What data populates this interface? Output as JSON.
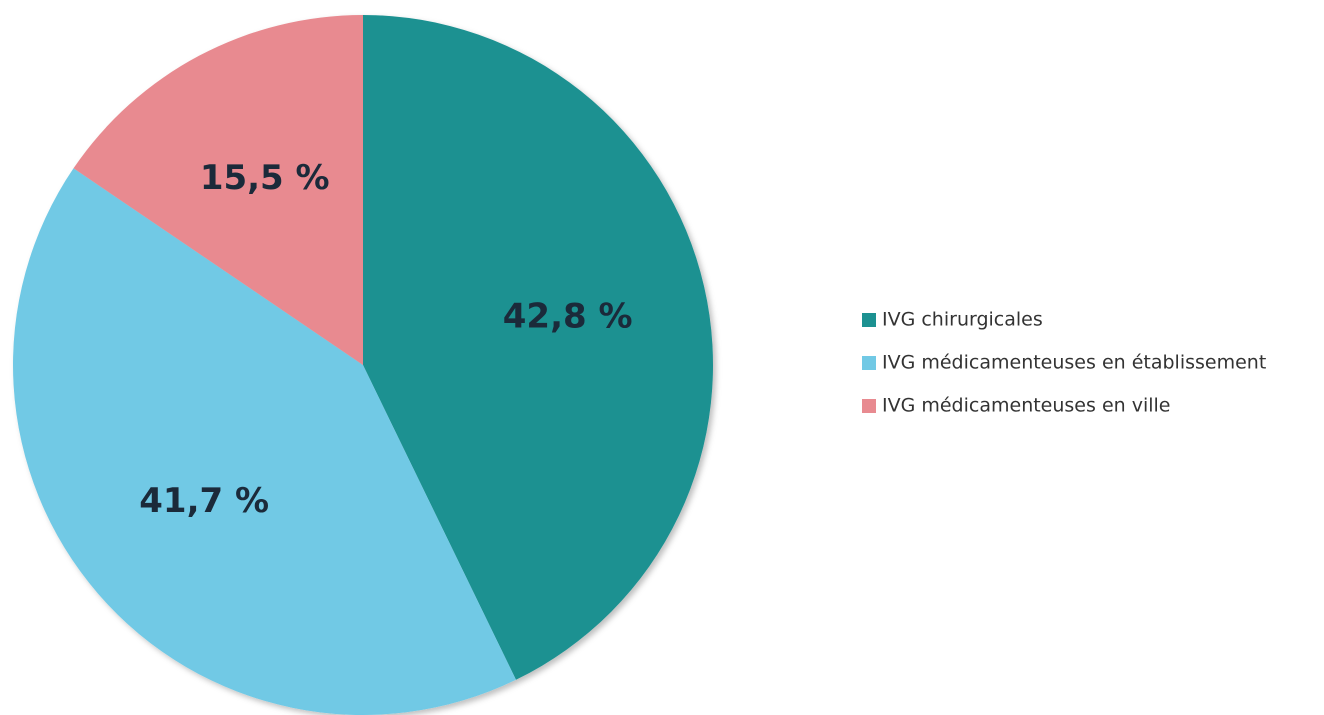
{
  "chart_data": {
    "type": "pie",
    "categories": [
      "IVG chirurgicales",
      "IVG médicamenteuses en établissement",
      "IVG médicamenteuses en ville"
    ],
    "values": [
      42.8,
      41.7,
      15.5
    ],
    "value_labels": [
      "42,8 %",
      "41,7 %",
      "15,5 %"
    ],
    "colors": [
      "#1c9191",
      "#71c9e5",
      "#e88a90"
    ],
    "legend": "right"
  }
}
